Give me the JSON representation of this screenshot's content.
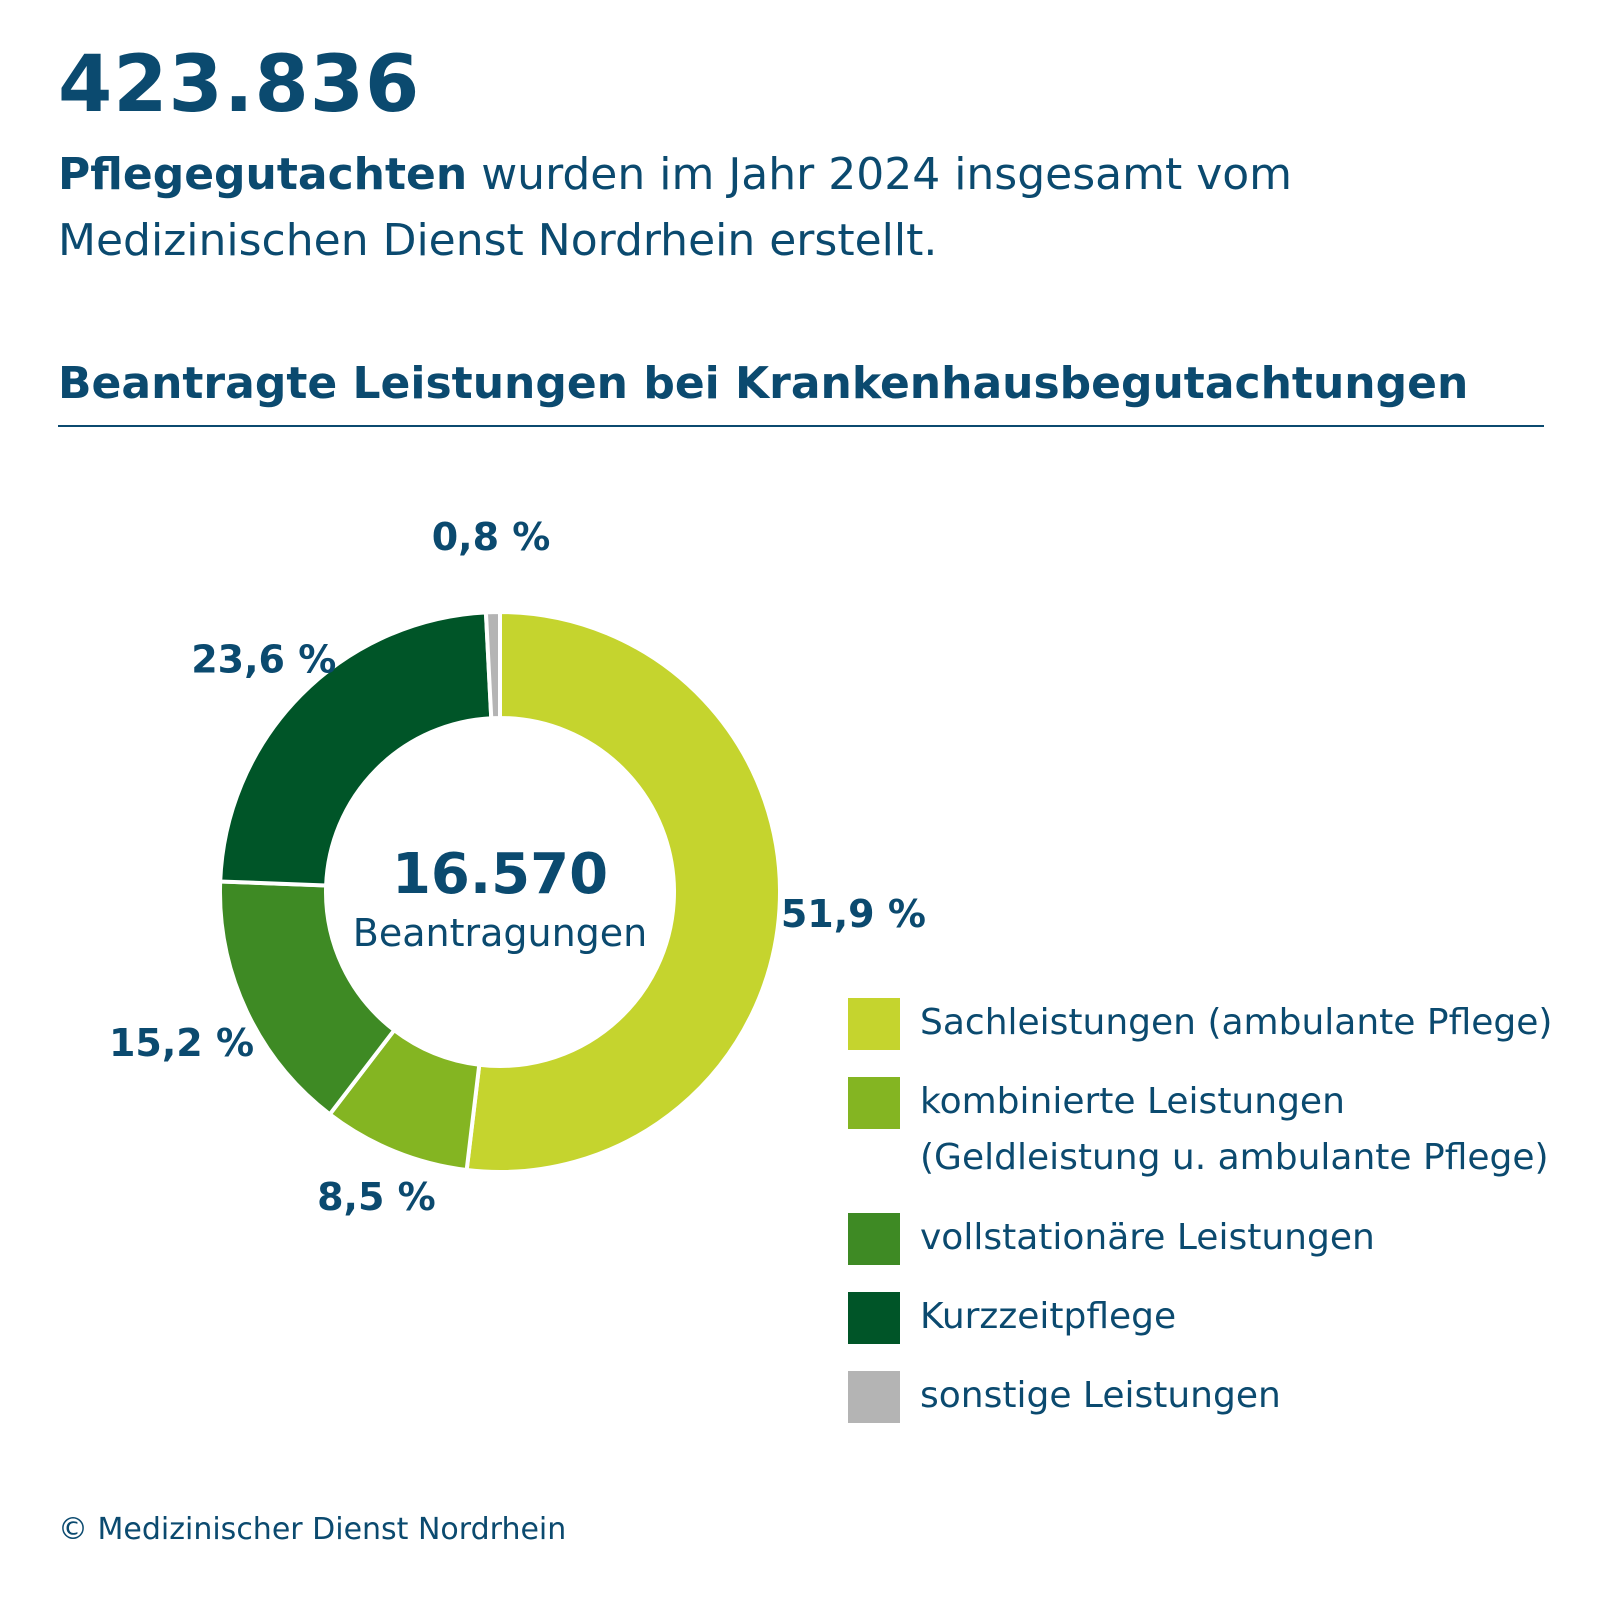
{
  "header": {
    "big_number": "423.836",
    "intro_bold": "Pflegegutachten",
    "intro_rest_line1": " wurden im Jahr 2024 insgesamt vom",
    "intro_line2": "Medizinischen Dienst Nordrhein erstellt."
  },
  "chart_data": {
    "type": "pie",
    "title": "Beantragte Leistungen bei Krankenhausbegutachtungen",
    "center_value": "16.570",
    "center_label": "Beantragungen",
    "series": [
      {
        "name": "Sachleistungen (ambulante Pflege)",
        "value": 51.9,
        "label": "51,9 %",
        "color": "#c5d42e"
      },
      {
        "name": "kombinierte Leistungen (Geldleistung u. ambulante Pflege)",
        "value": 8.5,
        "label": "8,5 %",
        "color": "#84b522"
      },
      {
        "name": "vollstationäre Leistungen",
        "value": 15.2,
        "label": "15,2 %",
        "color": "#3e8a24"
      },
      {
        "name": "Kurzzeitpflege",
        "value": 23.6,
        "label": "23,6 %",
        "color": "#005528"
      },
      {
        "name": "sonstige Leistungen",
        "value": 0.8,
        "label": "0,8 %",
        "color": "#b4b4b4"
      }
    ],
    "legend_placement": "bottom-right"
  },
  "legend": {
    "items": [
      {
        "lines": [
          "Sachleistungen (ambulante Pflege)"
        ]
      },
      {
        "lines": [
          "kombinierte Leistungen",
          "(Geldleistung u. ambulante Pflege)"
        ]
      },
      {
        "lines": [
          "vollstationäre Leistungen"
        ]
      },
      {
        "lines": [
          "Kurzzeitpflege"
        ]
      },
      {
        "lines": [
          "sonstige Leistungen"
        ]
      }
    ]
  },
  "footer": {
    "text": "© Medizinischer Dienst Nordrhein"
  }
}
